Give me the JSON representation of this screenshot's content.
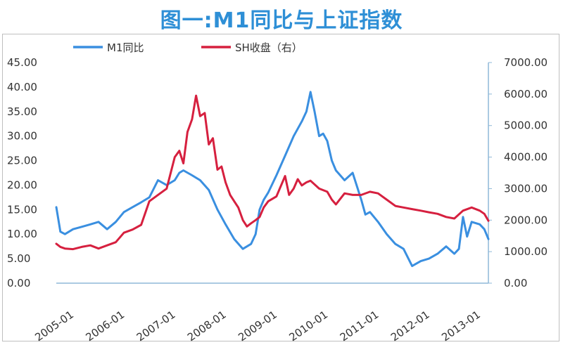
{
  "title": "图一:M1同比与上证指数",
  "colors": {
    "m1": "#3a8fe0",
    "sh": "#d6203f",
    "axis": "#8fb8d8",
    "title": "#2e8fd6"
  },
  "chart_data": {
    "type": "line",
    "title": "图一:M1同比与上证指数",
    "legend": {
      "placement": "top-left",
      "entries": [
        "M1同比",
        "SH收盘（右）"
      ]
    },
    "grid": false,
    "x_ticks": [
      "2005-01",
      "2006-01",
      "2007-01",
      "2008-01",
      "2009-01",
      "2010-01",
      "2011-01",
      "2012-01",
      "2013-01"
    ],
    "x_range": [
      2005.0,
      2013.5
    ],
    "y_left": {
      "range": [
        0,
        45
      ],
      "ticks": [
        "0.00",
        "5.00",
        "10.00",
        "15.00",
        "20.00",
        "25.00",
        "30.00",
        "35.00",
        "40.00",
        "45.00"
      ]
    },
    "y_right": {
      "range": [
        0,
        7000
      ],
      "ticks": [
        "0.00",
        "1000.00",
        "2000.00",
        "3000.00",
        "4000.00",
        "5000.00",
        "6000.00",
        "7000.00"
      ]
    },
    "series": [
      {
        "name": "M1同比",
        "axis": "left",
        "x": [
          2005.0,
          2005.08,
          2005.17,
          2005.33,
          2005.5,
          2005.67,
          2005.83,
          2006.0,
          2006.17,
          2006.25,
          2006.33,
          2006.5,
          2006.67,
          2006.83,
          2007.0,
          2007.17,
          2007.33,
          2007.42,
          2007.5,
          2007.67,
          2007.83,
          2008.0,
          2008.17,
          2008.33,
          2008.5,
          2008.67,
          2008.83,
          2008.92,
          2009.0,
          2009.08,
          2009.17,
          2009.33,
          2009.5,
          2009.67,
          2009.83,
          2009.92,
          2010.0,
          2010.08,
          2010.17,
          2010.25,
          2010.33,
          2010.42,
          2010.5,
          2010.67,
          2010.83,
          2011.0,
          2011.08,
          2011.17,
          2011.33,
          2011.5,
          2011.67,
          2011.83,
          2012.0,
          2012.17,
          2012.33,
          2012.5,
          2012.67,
          2012.83,
          2012.92,
          2013.0,
          2013.08,
          2013.17,
          2013.33,
          2013.42,
          2013.5
        ],
        "values": [
          15.5,
          10.5,
          10.0,
          11.0,
          11.5,
          12.0,
          12.5,
          11.0,
          12.5,
          13.5,
          14.5,
          15.5,
          16.5,
          17.5,
          21.0,
          20.0,
          21.0,
          22.5,
          23.0,
          22.0,
          21.0,
          19.0,
          15.0,
          12.0,
          9.0,
          7.0,
          8.0,
          10.0,
          15.0,
          17.0,
          18.5,
          22.0,
          26.0,
          30.0,
          33.0,
          35.0,
          39.0,
          35.0,
          30.0,
          30.5,
          29.0,
          25.0,
          23.0,
          21.0,
          22.5,
          17.0,
          14.0,
          14.5,
          12.5,
          10.0,
          8.0,
          7.0,
          3.5,
          4.5,
          5.0,
          6.0,
          7.5,
          6.0,
          7.0,
          13.5,
          9.5,
          12.5,
          12.0,
          11.0,
          9.0
        ]
      },
      {
        "name": "SH收盘（右）",
        "axis": "right",
        "x": [
          2005.0,
          2005.08,
          2005.17,
          2005.33,
          2005.5,
          2005.67,
          2005.83,
          2006.0,
          2006.17,
          2006.33,
          2006.5,
          2006.67,
          2006.83,
          2007.0,
          2007.17,
          2007.33,
          2007.42,
          2007.5,
          2007.58,
          2007.67,
          2007.75,
          2007.83,
          2007.92,
          2008.0,
          2008.08,
          2008.17,
          2008.25,
          2008.33,
          2008.42,
          2008.5,
          2008.58,
          2008.67,
          2008.75,
          2008.83,
          2008.92,
          2009.0,
          2009.08,
          2009.17,
          2009.33,
          2009.5,
          2009.58,
          2009.67,
          2009.75,
          2009.83,
          2009.92,
          2010.0,
          2010.17,
          2010.33,
          2010.42,
          2010.5,
          2010.67,
          2010.83,
          2011.0,
          2011.17,
          2011.33,
          2011.5,
          2011.67,
          2011.83,
          2012.0,
          2012.17,
          2012.33,
          2012.5,
          2012.67,
          2012.83,
          2013.0,
          2013.17,
          2013.33,
          2013.42,
          2013.5
        ],
        "values": [
          1250,
          1150,
          1100,
          1080,
          1150,
          1200,
          1100,
          1200,
          1300,
          1600,
          1700,
          1850,
          2600,
          2800,
          3000,
          4000,
          4200,
          3800,
          4800,
          5200,
          5950,
          5300,
          5400,
          4400,
          4600,
          3600,
          3700,
          3200,
          2800,
          2600,
          2400,
          2000,
          1800,
          1900,
          2000,
          2100,
          2400,
          2600,
          2750,
          3400,
          2800,
          3000,
          3300,
          3100,
          3200,
          3250,
          3000,
          2900,
          2650,
          2500,
          2850,
          2800,
          2800,
          2900,
          2850,
          2650,
          2450,
          2400,
          2350,
          2300,
          2250,
          2200,
          2100,
          2050,
          2300,
          2400,
          2300,
          2200,
          1980
        ]
      }
    ]
  }
}
